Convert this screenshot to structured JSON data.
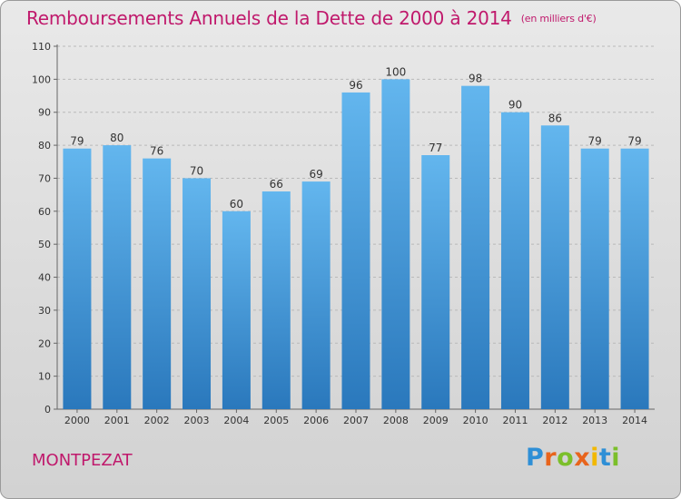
{
  "title": "Remboursements Annuels de la Dette de 2000 à 2014",
  "unit": "(en milliers d'€)",
  "place": "MONTPEZAT",
  "logo": "Proxiti",
  "chart_data": {
    "type": "bar",
    "categories": [
      "2000",
      "2001",
      "2002",
      "2003",
      "2004",
      "2005",
      "2006",
      "2007",
      "2008",
      "2009",
      "2010",
      "2011",
      "2012",
      "2013",
      "2014"
    ],
    "values": [
      79,
      80,
      76,
      70,
      60,
      66,
      69,
      96,
      100,
      77,
      98,
      90,
      86,
      79,
      79
    ],
    "ylim": [
      0,
      110
    ],
    "yticks": [
      0,
      10,
      20,
      30,
      40,
      50,
      60,
      70,
      80,
      90,
      100,
      110
    ],
    "grid": true,
    "colors": {
      "bar_light": "#5eb3ec",
      "bar_dark": "#2b79bd",
      "title": "#c0196c"
    }
  }
}
